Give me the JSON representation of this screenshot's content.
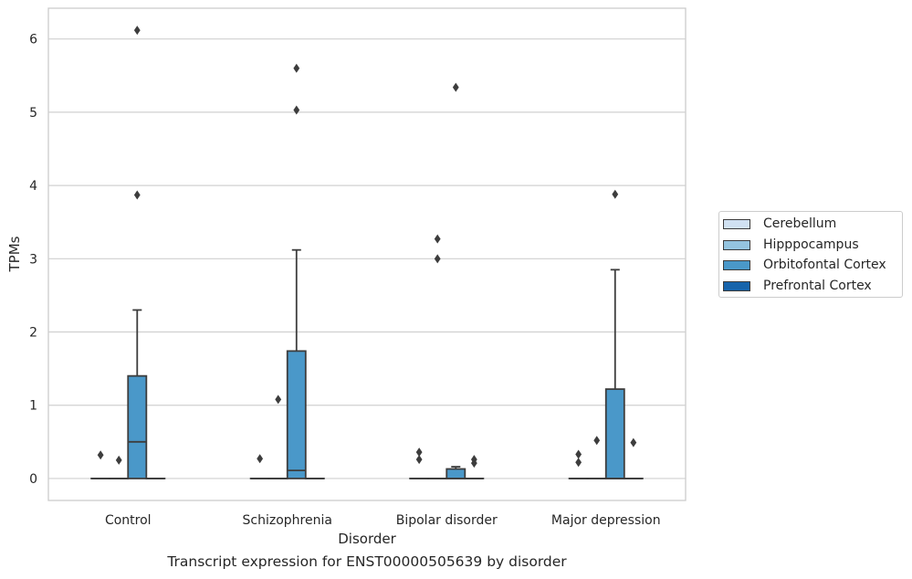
{
  "chart_data": {
    "type": "box",
    "title": "",
    "xlabel": "Disorder",
    "ylabel": "TPMs",
    "caption": "Transcript expression for ENST00000505639 by disorder",
    "ylim": [
      -0.3,
      6.42
    ],
    "yticks": [
      "0",
      "1",
      "2",
      "3",
      "4",
      "5",
      "6"
    ],
    "grid": "horizontal",
    "legend_position": "right",
    "categories": [
      "Control",
      "Schizophrenia",
      "Bipolar disorder",
      "Major depression"
    ],
    "series": [
      {
        "name": "Cerebellum",
        "color": "#d0e1f2",
        "boxes": [
          {
            "q1": 0,
            "median": 0,
            "q3": 0,
            "whisker_low": 0,
            "whisker_high": 0,
            "outliers": [
              0.32
            ]
          },
          {
            "q1": 0,
            "median": 0,
            "q3": 0,
            "whisker_low": 0,
            "whisker_high": 0,
            "outliers": [
              0.27
            ]
          },
          {
            "q1": 0,
            "median": 0,
            "q3": 0,
            "whisker_low": 0,
            "whisker_high": 0,
            "outliers": [
              0.36,
              0.26
            ]
          },
          {
            "q1": 0,
            "median": 0,
            "q3": 0,
            "whisker_low": 0,
            "whisker_high": 0,
            "outliers": [
              0.33,
              0.22
            ]
          }
        ]
      },
      {
        "name": "Hipppocampus",
        "color": "#94c4df",
        "boxes": [
          {
            "q1": 0,
            "median": 0,
            "q3": 0,
            "whisker_low": 0,
            "whisker_high": 0,
            "outliers": [
              0.25
            ]
          },
          {
            "q1": 0,
            "median": 0,
            "q3": 0,
            "whisker_low": 0,
            "whisker_high": 0,
            "outliers": [
              1.08
            ]
          },
          {
            "q1": 0,
            "median": 0,
            "q3": 0,
            "whisker_low": 0,
            "whisker_high": 0,
            "outliers": [
              3.27,
              3.0
            ]
          },
          {
            "q1": 0,
            "median": 0,
            "q3": 0,
            "whisker_low": 0,
            "whisker_high": 0,
            "outliers": [
              0.52
            ]
          }
        ]
      },
      {
        "name": "Orbitofontal Cortex",
        "color": "#4a98c9",
        "boxes": [
          {
            "q1": 0,
            "median": 0.5,
            "q3": 1.4,
            "whisker_low": 0,
            "whisker_high": 2.3,
            "outliers": [
              6.12,
              3.87
            ]
          },
          {
            "q1": 0,
            "median": 0.11,
            "q3": 1.74,
            "whisker_low": 0,
            "whisker_high": 3.12,
            "outliers": [
              5.6,
              5.03
            ]
          },
          {
            "q1": 0,
            "median": 0,
            "q3": 0.13,
            "whisker_low": 0,
            "whisker_high": 0.16,
            "outliers": [
              5.34
            ]
          },
          {
            "q1": 0,
            "median": 0,
            "q3": 1.22,
            "whisker_low": 0,
            "whisker_high": 2.85,
            "outliers": [
              3.88
            ]
          }
        ]
      },
      {
        "name": "Prefrontal Cortex",
        "color": "#1764ab",
        "boxes": [
          {
            "q1": 0,
            "median": 0,
            "q3": 0,
            "whisker_low": 0,
            "whisker_high": 0,
            "outliers": []
          },
          {
            "q1": 0,
            "median": 0,
            "q3": 0,
            "whisker_low": 0,
            "whisker_high": 0,
            "outliers": []
          },
          {
            "q1": 0,
            "median": 0,
            "q3": 0,
            "whisker_low": 0,
            "whisker_high": 0,
            "outliers": [
              0.26,
              0.21
            ]
          },
          {
            "q1": 0,
            "median": 0,
            "q3": 0,
            "whisker_low": 0,
            "whisker_high": 0,
            "outliers": [
              0.49
            ]
          }
        ]
      }
    ]
  }
}
